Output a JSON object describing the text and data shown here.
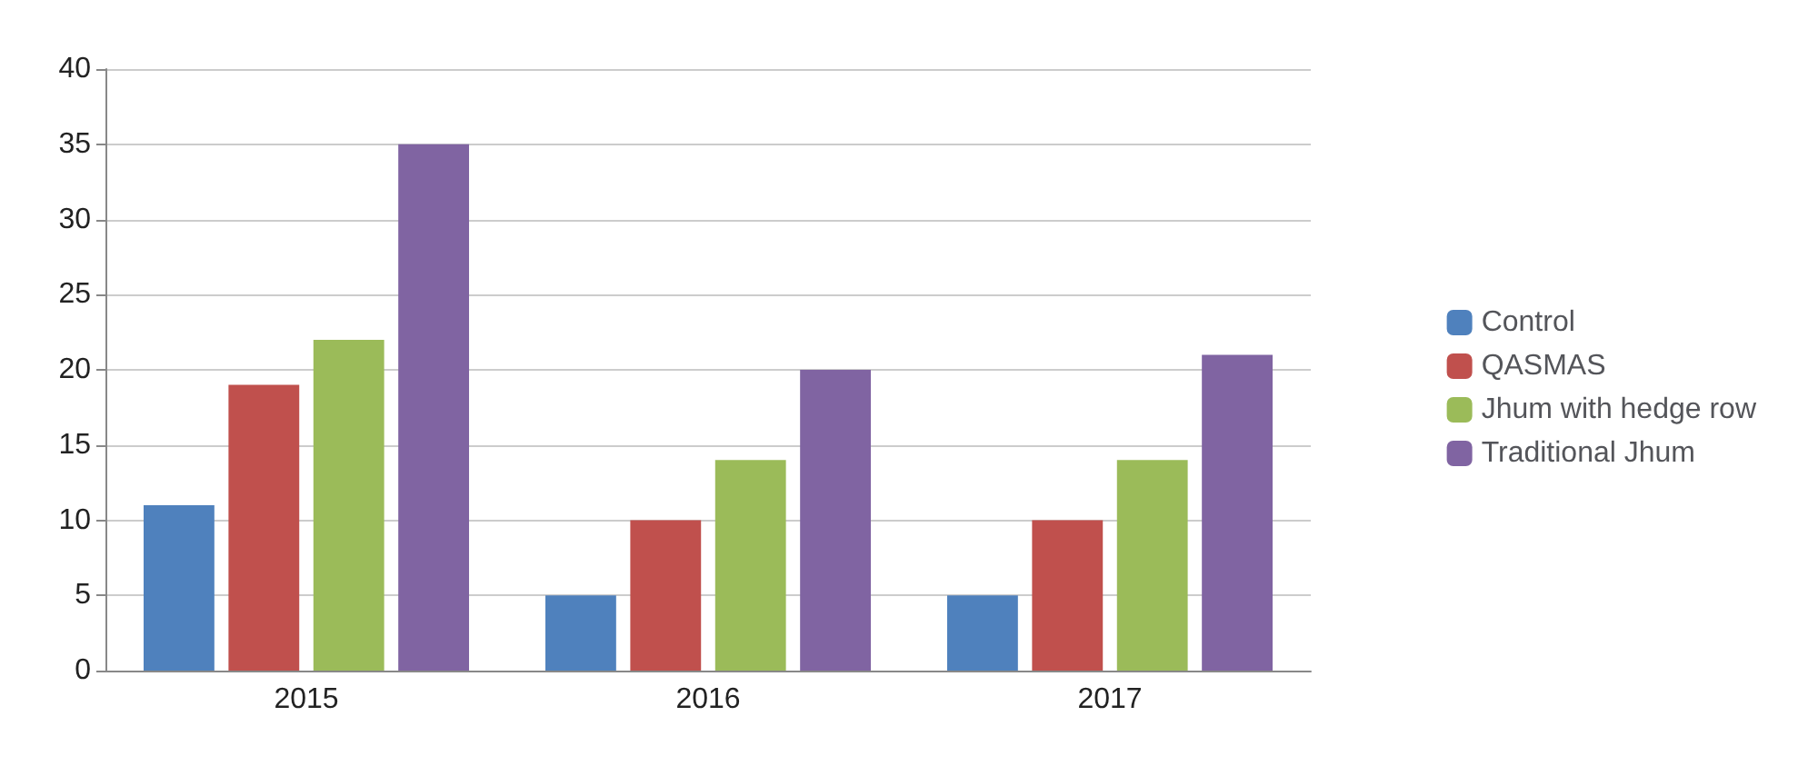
{
  "chart_data": {
    "type": "bar",
    "categories": [
      "2015",
      "2016",
      "2017"
    ],
    "series": [
      {
        "name": "Control",
        "color": "#4f81bd",
        "values": [
          11,
          5,
          5
        ]
      },
      {
        "name": "QASMAS",
        "color": "#c0504d",
        "values": [
          19,
          10,
          10
        ]
      },
      {
        "name": "Jhum with hedge row",
        "color": "#9bbb59",
        "values": [
          22,
          14,
          14
        ]
      },
      {
        "name": "Traditional Jhum",
        "color": "#8064a2",
        "values": [
          35,
          20,
          21
        ]
      }
    ],
    "ylim": [
      0,
      40
    ],
    "yticks": [
      0,
      5,
      10,
      15,
      20,
      25,
      30,
      35,
      40
    ],
    "grid": "y",
    "legend": "right"
  }
}
